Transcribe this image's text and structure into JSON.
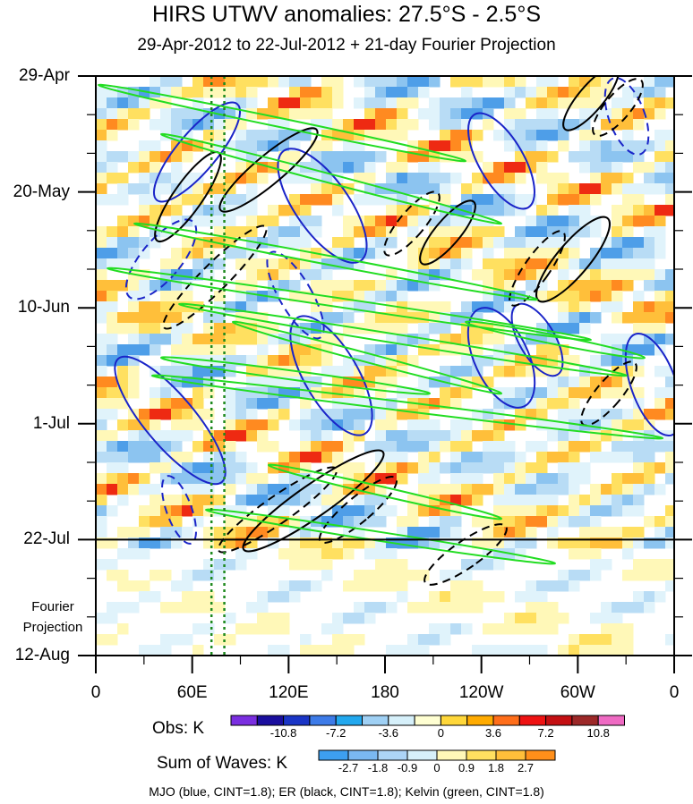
{
  "chart_data": {
    "type": "heatmap",
    "title": "HIRS UTWV anomalies: 27.5°S - 2.5°S",
    "subtitle": "29-Apr-2012 to 22-Jul-2012 + 21-day Fourier Projection",
    "x_ticks": [
      "0",
      "60E",
      "120E",
      "180",
      "120W",
      "60W",
      "0"
    ],
    "x_tick_values": [
      0,
      60,
      120,
      180,
      240,
      300,
      360
    ],
    "y_ticks": [
      "29-Apr",
      "20-May",
      "10-Jun",
      "1-Jul",
      "22-Jul",
      "12-Aug"
    ],
    "y_tick_days": [
      0,
      21,
      42,
      63,
      84,
      105
    ],
    "xlim": [
      0,
      360
    ],
    "ylim_days": [
      0,
      105
    ],
    "observation_end_day": 84,
    "forecast_label": [
      "Fourier",
      "Projection"
    ],
    "obs_colorbar": {
      "label": "Obs: K",
      "colors": [
        "#7a2ee0",
        "#1a0e9e",
        "#1a35c6",
        "#3d7be8",
        "#22a8ee",
        "#9fd0f4",
        "#d6f0fa",
        "#ffffd2",
        "#ffd73a",
        "#ffab00",
        "#ff6e1a",
        "#ee1212",
        "#c40f12",
        "#9c2828",
        "#ef6ac3"
      ],
      "tick_labels": [
        "-10.8",
        "-7.2",
        "-3.6",
        "0",
        "3.6",
        "7.2",
        "10.8"
      ]
    },
    "waves_colorbar": {
      "label": "Sum of Waves: K",
      "colors": [
        "#3d9ff0",
        "#7ab8f2",
        "#acd4f6",
        "#d6f0fa",
        "#fff8b8",
        "#ffe060",
        "#ffbf3a",
        "#ff8f1a"
      ],
      "tick_labels": [
        "-2.7",
        "-1.8",
        "-0.9",
        "0",
        "0.9",
        "1.8",
        "2.7"
      ]
    },
    "contours": [
      {
        "name": "MJO",
        "color": "#1a24c8",
        "cint": 1.8
      },
      {
        "name": "ER",
        "color": "#000000",
        "cint": 1.8
      },
      {
        "name": "Kelvin",
        "color": "#22dd22",
        "cint": 1.8
      }
    ],
    "reference_longitudes": [
      72,
      80
    ],
    "footnote": "MJO (blue, CINT=1.8); ER (black, CINT=1.8); Kelvin (green, CINT=1.8)"
  }
}
